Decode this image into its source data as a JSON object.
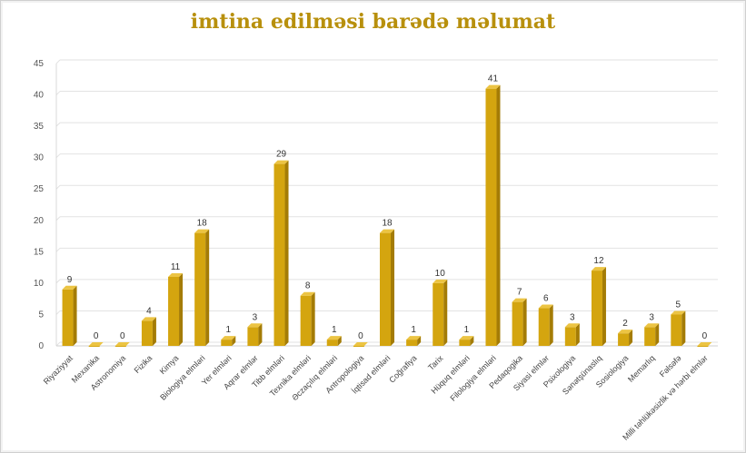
{
  "chart_data": {
    "type": "bar",
    "title_line_1": "",
    "title_line_2": "imtina edilməsi barədə məlumat",
    "ylim": [
      0,
      45
    ],
    "yticks": [
      0,
      5,
      10,
      15,
      20,
      25,
      30,
      35,
      40,
      45
    ],
    "grid": true,
    "bar_color": "#d4a50f",
    "categories": [
      "Riyaziyyat",
      "Mexanika",
      "Astronomiya",
      "Fizika",
      "Kimya",
      "Biologiya elmləri",
      "Yer elmləri",
      "Aqrar elmlər",
      "Tibb elmləri",
      "Texnika elmləri",
      "Əczaçılıq elmləri",
      "Antropologiya",
      "İqtisad elmləri",
      "Coğrafiya",
      "Tarix",
      "Hüquq elmləri",
      "Filologiya elmləri",
      "Pedaqogika",
      "Siyasi elmlər",
      "Psixologiya",
      "Sənətşünaslıq",
      "Sosiologiya",
      "Memarlıq",
      "Fəlsəfə",
      "Milli təhlükəsizlik və hərbi elmlər"
    ],
    "values": [
      9,
      0,
      0,
      4,
      11,
      18,
      1,
      3,
      29,
      8,
      1,
      0,
      18,
      1,
      10,
      1,
      41,
      7,
      6,
      3,
      12,
      2,
      3,
      5,
      0
    ]
  }
}
